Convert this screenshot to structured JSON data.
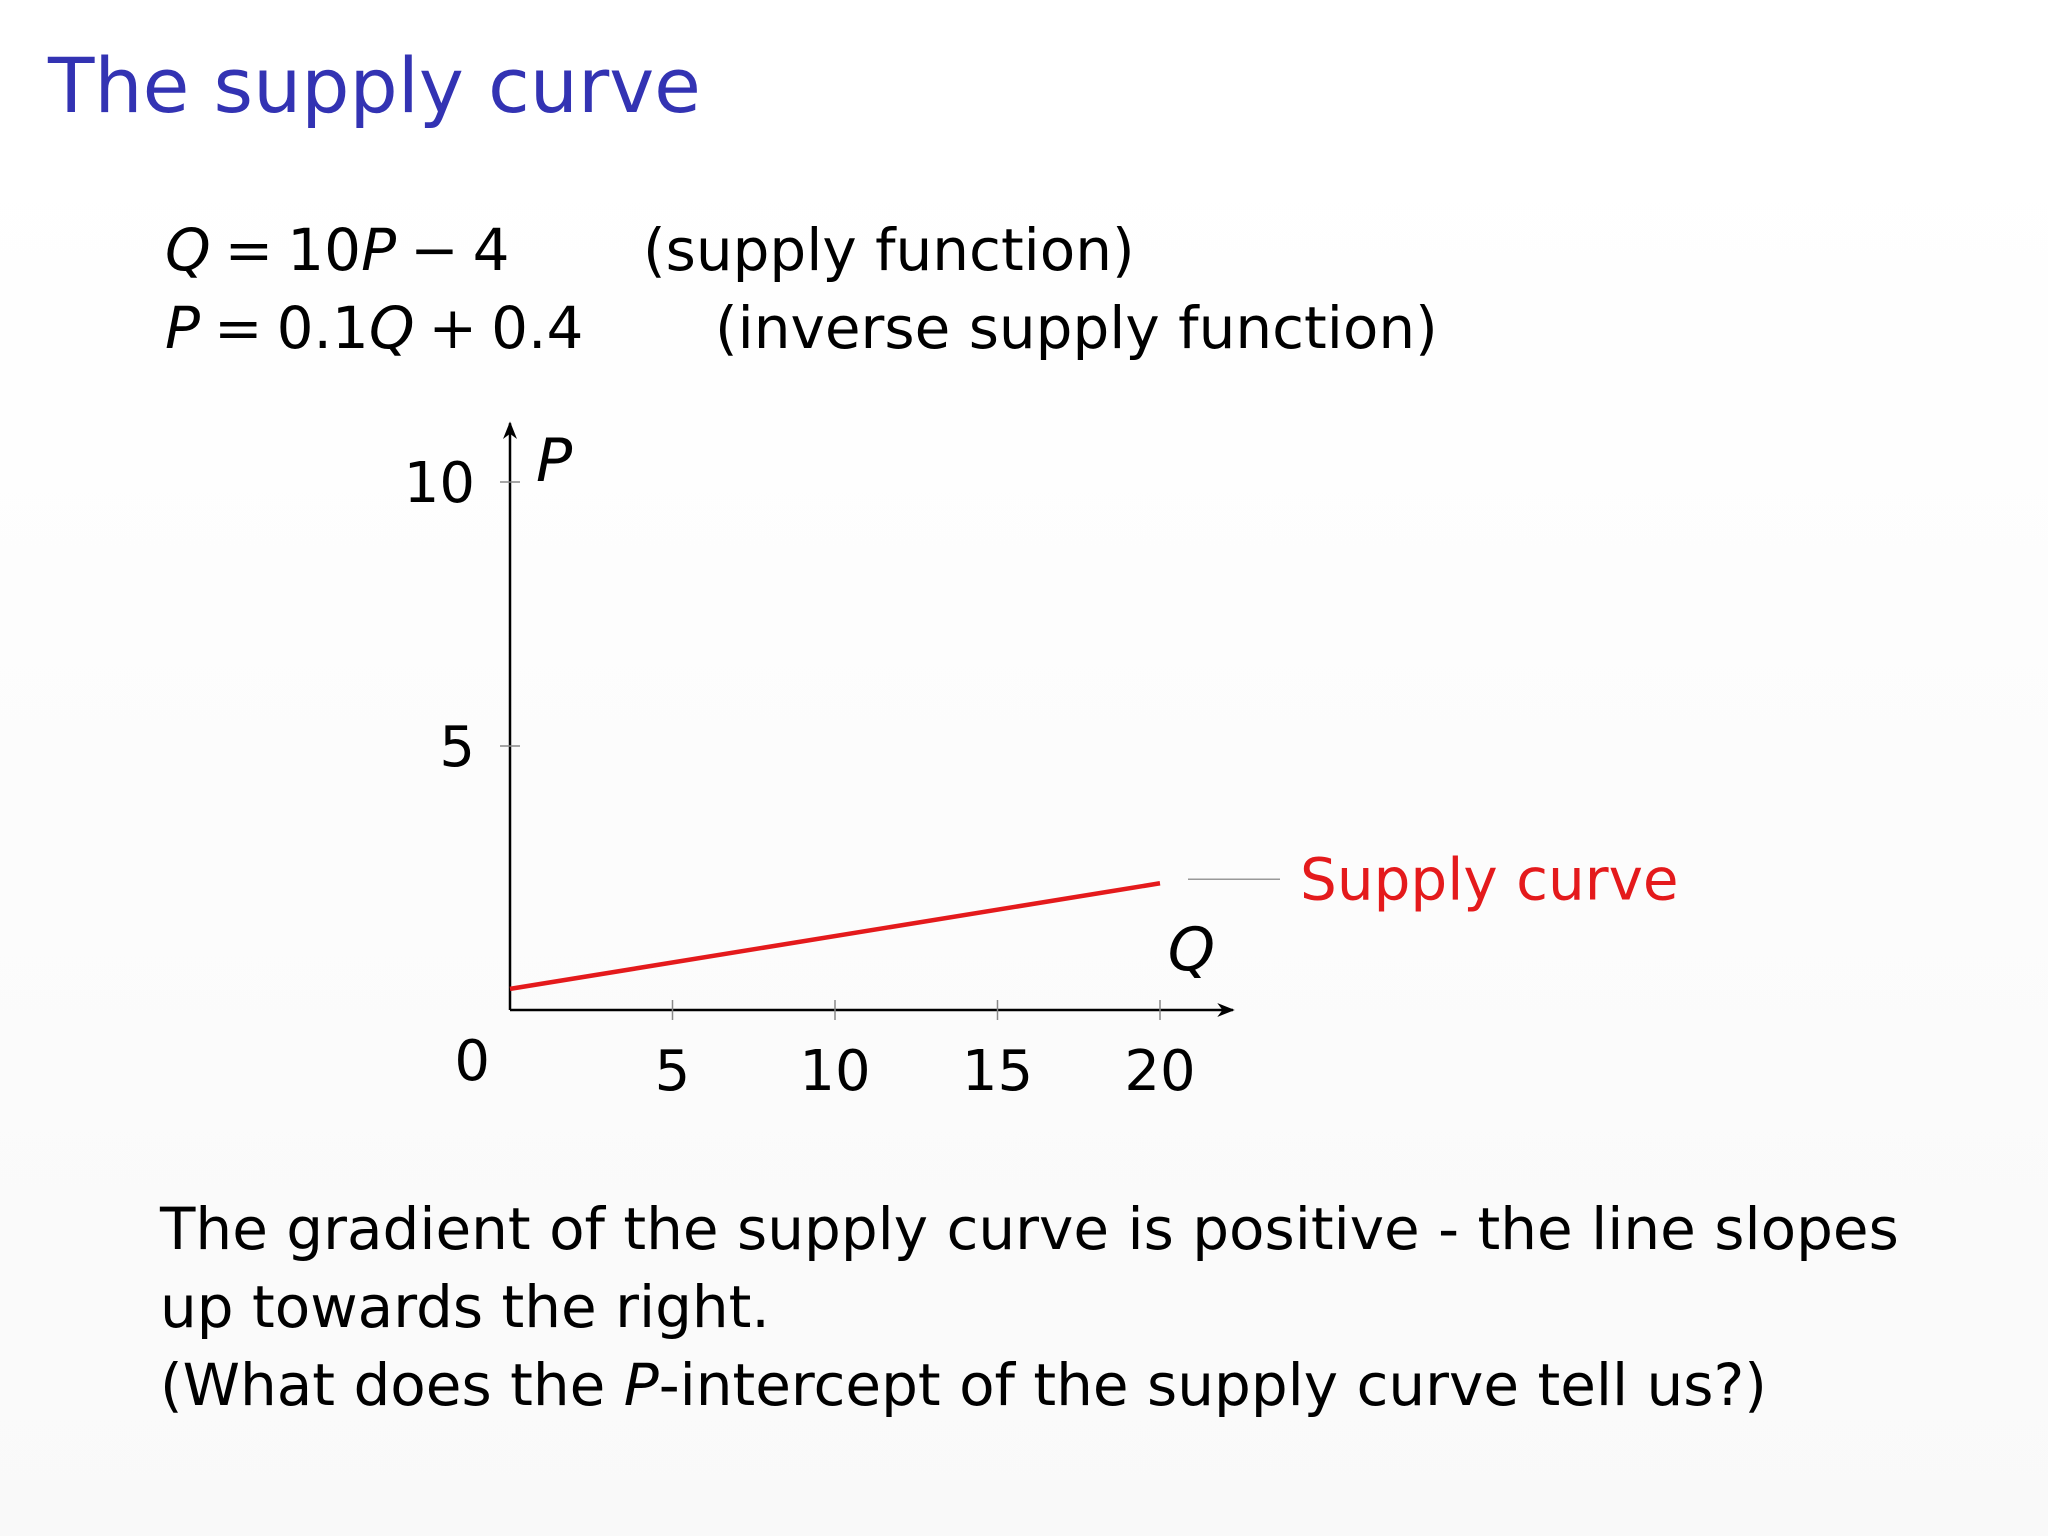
{
  "slide": {
    "title": "The supply curve",
    "colors": {
      "title": "#3333b3",
      "curve": "#e41a1c",
      "axis": "#000000",
      "leader": "#999999"
    }
  },
  "equations": [
    {
      "lhs": "Q",
      "equals": "=",
      "term1": "10",
      "term1_var": "P",
      "op": "−",
      "term2": "4",
      "term2_var": "",
      "op2": "",
      "term3": "",
      "note": "(supply function)"
    },
    {
      "lhs": "P",
      "equals": "=",
      "term1": "0.1",
      "term1_var": "Q",
      "op": "+",
      "term2": "0.4",
      "term2_var": "",
      "op2": "",
      "term3": "",
      "note": "(inverse supply function)"
    }
  ],
  "chart_data": {
    "type": "line",
    "xlabel": "Q",
    "ylabel": "P",
    "xlim": [
      0,
      22
    ],
    "ylim": [
      0,
      11
    ],
    "x_ticks": [
      5,
      10,
      15,
      20
    ],
    "x_tick_labels": [
      "5",
      "10",
      "15",
      "20"
    ],
    "y_ticks": [
      5,
      10
    ],
    "y_tick_labels": [
      "5",
      "10"
    ],
    "origin_label": "0",
    "grid": false,
    "legend": "none",
    "series": [
      {
        "name": "Supply curve",
        "x": [
          0,
          20
        ],
        "y": [
          0.4,
          2.4
        ],
        "color": "#e41a1c"
      }
    ],
    "annotations": [
      {
        "text": "Supply curve",
        "target_series": 0,
        "placement": "right-of-line-end"
      }
    ]
  },
  "body": {
    "line1": "The gradient of the supply curve is positive - the line slopes up towards the right.",
    "line2_pre": "(What does the ",
    "line2_var": "P",
    "line2_post": "-intercept of the supply curve tell us?)"
  }
}
